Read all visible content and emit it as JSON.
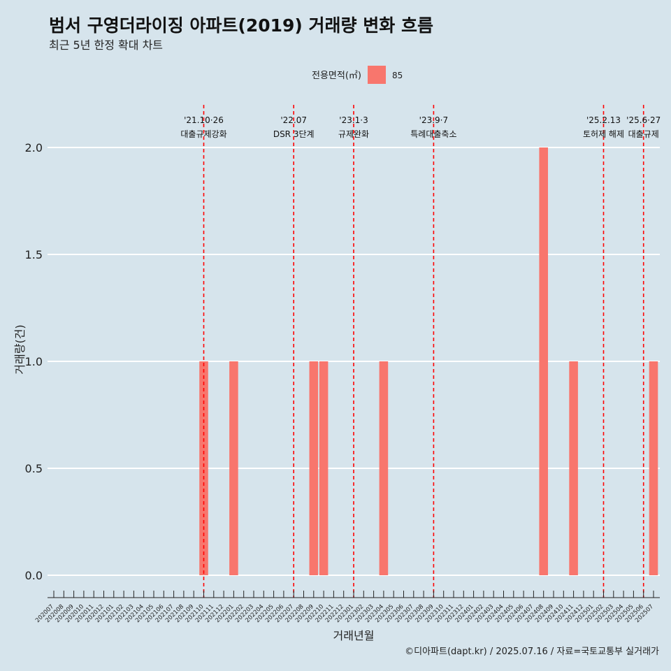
{
  "colors": {
    "background": "#d6e4ec",
    "bar": "#f8766d",
    "event_line": "#ff0000",
    "grid": "#ffffff",
    "text": "#111111"
  },
  "chart_data": {
    "type": "bar",
    "title": "범서 구영더라이징 아파트(2019) 거래량 변화 흐름",
    "subtitle": "최근 5년 한정 확대 차트",
    "xlabel": "거래년월",
    "ylabel": "거래량(건)",
    "caption": "©디아파트(dapt.kr) / 2025.07.16 / 자료=국토교통부 실거래가",
    "legend": {
      "title": "전용면적(㎡)",
      "position": "top",
      "items": [
        {
          "label": "85",
          "color": "#f8766d"
        }
      ]
    },
    "ylim": [
      0,
      2
    ],
    "y_ticks": [
      "0.0",
      "0.5",
      "1.0",
      "1.5",
      "2.0"
    ],
    "y_tick_values": [
      0,
      0.5,
      1.0,
      1.5,
      2.0
    ],
    "grid": true,
    "categories": [
      "202007",
      "202008",
      "202009",
      "202010",
      "202011",
      "202012",
      "202101",
      "202102",
      "202103",
      "202104",
      "202105",
      "202106",
      "202107",
      "202108",
      "202109",
      "202110",
      "202111",
      "202112",
      "202201",
      "202202",
      "202203",
      "202204",
      "202205",
      "202206",
      "202207",
      "202208",
      "202209",
      "202210",
      "202211",
      "202212",
      "202301",
      "202302",
      "202303",
      "202304",
      "202305",
      "202306",
      "202307",
      "202308",
      "202309",
      "202310",
      "202311",
      "202312",
      "202401",
      "202402",
      "202403",
      "202404",
      "202405",
      "202406",
      "202407",
      "202408",
      "202409",
      "202410",
      "202411",
      "202412",
      "202501",
      "202502",
      "202503",
      "202504",
      "202505",
      "202506",
      "202507"
    ],
    "series": [
      {
        "name": "85",
        "values": [
          0,
          0,
          0,
          0,
          0,
          0,
          0,
          0,
          0,
          0,
          0,
          0,
          0,
          0,
          0,
          1,
          0,
          0,
          1,
          0,
          0,
          0,
          0,
          0,
          0,
          0,
          1,
          1,
          0,
          0,
          0,
          0,
          0,
          1,
          0,
          0,
          0,
          0,
          0,
          0,
          0,
          0,
          0,
          0,
          0,
          0,
          0,
          0,
          0,
          2,
          0,
          0,
          1,
          0,
          0,
          0,
          0,
          0,
          0,
          0,
          1
        ]
      }
    ],
    "events": [
      {
        "date": "202110",
        "label1": "'21.10·26",
        "label2": "대출규제강화"
      },
      {
        "date": "202207",
        "label1": "'22.07",
        "label2": "DSR 3단계"
      },
      {
        "date": "202301",
        "label1": "'23.1·3",
        "label2": "규제완화"
      },
      {
        "date": "202309",
        "label1": "'23.9·7",
        "label2": "특례대출축소"
      },
      {
        "date": "202502",
        "label1": "'25.2.13",
        "label2": "토허제 해제"
      },
      {
        "date": "202506",
        "label1": "'25.6·27",
        "label2": "대출규제"
      }
    ]
  }
}
